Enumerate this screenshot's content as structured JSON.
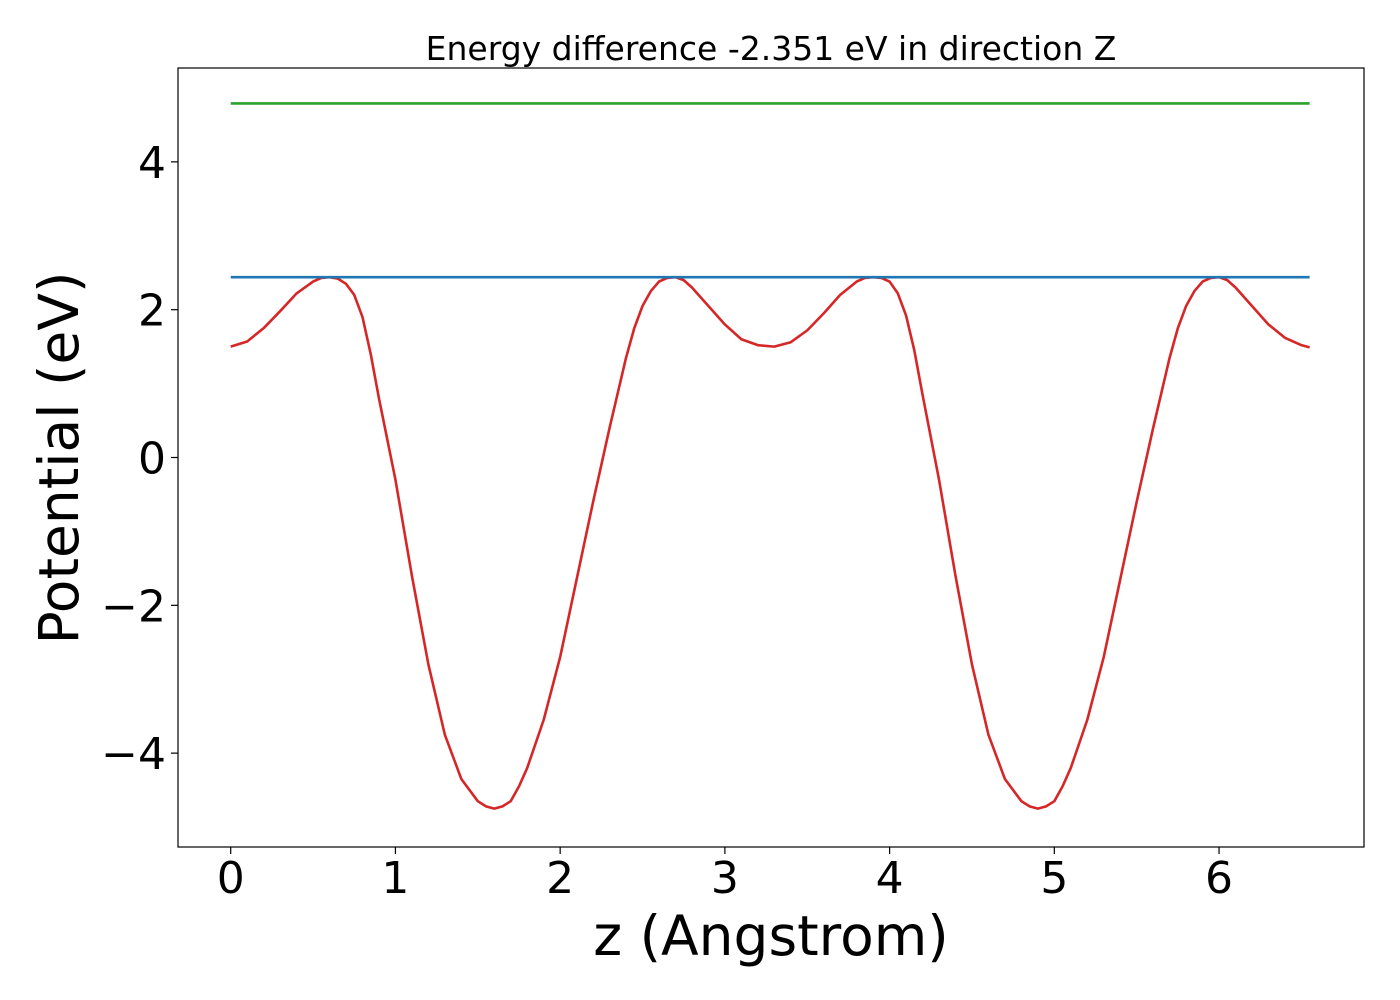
{
  "chart_data": {
    "type": "line",
    "title": "Energy difference -2.351 eV in direction Z",
    "xlabel": "z (Angstrom)",
    "ylabel": "Potential (eV)",
    "xlim": [
      -0.32,
      6.88
    ],
    "ylim": [
      -5.27,
      5.27
    ],
    "xticks": [
      0,
      1,
      2,
      3,
      4,
      5,
      6
    ],
    "yticks": [
      4,
      2,
      0,
      -2,
      -4
    ],
    "xtick_labels": [
      "0",
      "1",
      "2",
      "3",
      "4",
      "5",
      "6"
    ],
    "ytick_labels": [
      "4",
      "2",
      "0",
      "−2",
      "−4"
    ],
    "grid": false,
    "legend": "none",
    "series": [
      {
        "color": "#d62728",
        "x": [
          0.0,
          0.1,
          0.2,
          0.3,
          0.4,
          0.5,
          0.55,
          0.6,
          0.65,
          0.7,
          0.75,
          0.8,
          0.85,
          0.9,
          1.0,
          1.1,
          1.2,
          1.3,
          1.4,
          1.5,
          1.55,
          1.6,
          1.65,
          1.7,
          1.75,
          1.8,
          1.9,
          2.0,
          2.1,
          2.2,
          2.3,
          2.4,
          2.45,
          2.5,
          2.55,
          2.6,
          2.65,
          2.7,
          2.75,
          2.8,
          2.9,
          3.0,
          3.1,
          3.2,
          3.3,
          3.4,
          3.5,
          3.6,
          3.7,
          3.8,
          3.85,
          3.9,
          3.95,
          4.0,
          4.05,
          4.1,
          4.15,
          4.2,
          4.3,
          4.4,
          4.5,
          4.6,
          4.7,
          4.8,
          4.85,
          4.9,
          4.95,
          5.0,
          5.05,
          5.1,
          5.2,
          5.3,
          5.4,
          5.5,
          5.6,
          5.7,
          5.75,
          5.8,
          5.85,
          5.9,
          5.95,
          6.0,
          6.05,
          6.1,
          6.2,
          6.3,
          6.4,
          6.5,
          6.55
        ],
        "y": [
          1.5,
          1.57,
          1.75,
          1.98,
          2.22,
          2.38,
          2.43,
          2.44,
          2.42,
          2.35,
          2.2,
          1.9,
          1.4,
          0.8,
          -0.3,
          -1.6,
          -2.8,
          -3.75,
          -4.35,
          -4.65,
          -4.72,
          -4.75,
          -4.72,
          -4.65,
          -4.45,
          -4.2,
          -3.55,
          -2.7,
          -1.65,
          -0.6,
          0.4,
          1.35,
          1.75,
          2.05,
          2.25,
          2.38,
          2.43,
          2.44,
          2.4,
          2.3,
          2.05,
          1.8,
          1.6,
          1.52,
          1.5,
          1.56,
          1.72,
          1.95,
          2.2,
          2.38,
          2.43,
          2.44,
          2.43,
          2.38,
          2.22,
          1.92,
          1.45,
          0.85,
          -0.3,
          -1.6,
          -2.8,
          -3.75,
          -4.35,
          -4.65,
          -4.72,
          -4.75,
          -4.72,
          -4.65,
          -4.45,
          -4.2,
          -3.55,
          -2.7,
          -1.65,
          -0.6,
          0.4,
          1.35,
          1.75,
          2.05,
          2.25,
          2.38,
          2.43,
          2.44,
          2.4,
          2.3,
          2.05,
          1.8,
          1.62,
          1.52,
          1.49
        ]
      },
      {
        "color": "#1f77b4",
        "x": [
          0.0,
          6.55
        ],
        "y": [
          2.44,
          2.44
        ]
      },
      {
        "color": "#2ca02c",
        "x": [
          0.0,
          6.55
        ],
        "y": [
          4.79,
          4.79
        ]
      }
    ]
  }
}
